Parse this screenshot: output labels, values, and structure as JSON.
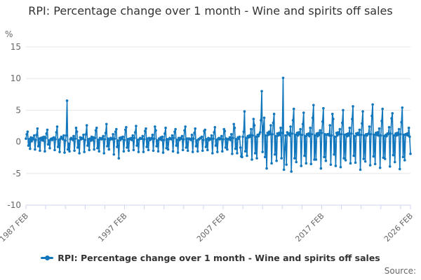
{
  "title": "RPI: Percentage change over 1 month - Wine and spirits off sales",
  "y_unit_label": "%",
  "legend": {
    "label": "RPI: Percentage change over 1 month - Wine and spirits off sales"
  },
  "source_label": "Source:",
  "colors": {
    "line": "#1277bc",
    "grid": "#e6e6e6",
    "axis": "#ccd6eb",
    "tick_label": "#666666",
    "title": "#333333"
  },
  "chart_data": {
    "type": "line",
    "title": "RPI: Percentage change over 1 month - Wine and spirits off sales",
    "xlabel": "",
    "ylabel": "%",
    "ylim": [
      -10,
      15
    ],
    "yticks": [
      15,
      10,
      5,
      0,
      -5,
      -10
    ],
    "grid": "horizontal",
    "legend_position": "bottom",
    "frequency": "monthly",
    "x_start": "1987 FEB",
    "x_end": "2026 FEB",
    "minor_tick_every_months": 24,
    "xtick_labels": [
      {
        "label": "1987 FEB",
        "month_index": 0
      },
      {
        "label": "1997 FEB",
        "month_index": 120
      },
      {
        "label": "2007 FEB",
        "month_index": 240
      },
      {
        "label": "2017 FEB",
        "month_index": 360
      },
      {
        "label": "2026 FEB",
        "month_index": 468
      }
    ],
    "series": [
      {
        "name": "RPI: Percentage change over 1 month - Wine and spirits off sales",
        "start": "1987 FEB",
        "values": [
          0.5,
          1.2,
          1.6,
          -0.6,
          0.4,
          -1.1,
          0.7,
          0.1,
          0.6,
          0.4,
          1.0,
          -1.2,
          0.3,
          1.1,
          2.1,
          -0.7,
          0.5,
          -1.4,
          0.6,
          0.3,
          0.7,
          0.2,
          0.8,
          -1.5,
          0.6,
          1.3,
          1.9,
          -0.4,
          0.2,
          -1.0,
          0.4,
          0.5,
          0.3,
          0.6,
          0.7,
          -1.3,
          0.4,
          1.5,
          2.4,
          -0.8,
          0.3,
          -1.6,
          0.5,
          0.8,
          0.6,
          0.4,
          1.0,
          -1.7,
          0.2,
          1.0,
          6.5,
          -1.2,
          -0.3,
          -1.5,
          0.4,
          0.6,
          0.5,
          0.3,
          0.9,
          -1.4,
          0.5,
          2.2,
          1.6,
          -0.9,
          0.2,
          -1.8,
          0.7,
          0.4,
          0.6,
          0.5,
          1.1,
          -1.6,
          0.3,
          1.2,
          2.6,
          -0.6,
          0.4,
          -1.3,
          0.5,
          0.2,
          0.8,
          0.3,
          0.7,
          -1.2,
          0.6,
          1.8,
          2.2,
          -1.0,
          0.3,
          -1.5,
          0.6,
          0.5,
          0.4,
          0.6,
          0.9,
          -1.8,
          0.4,
          1.4,
          2.8,
          -0.7,
          0.5,
          -1.2,
          0.3,
          0.6,
          0.5,
          0.4,
          1.2,
          -2.0,
          0.5,
          1.6,
          2.0,
          -0.8,
          0.2,
          -2.6,
          0.6,
          0.3,
          0.7,
          0.5,
          0.8,
          -1.5,
          0.3,
          1.9,
          2.3,
          -0.9,
          0.4,
          -1.4,
          0.5,
          0.4,
          0.6,
          0.3,
          1.0,
          -1.3,
          0.6,
          1.5,
          2.5,
          -0.6,
          0.3,
          -1.6,
          0.4,
          0.6,
          0.5,
          0.5,
          0.9,
          -1.6,
          0.4,
          1.7,
          2.1,
          -0.8,
          0.5,
          -1.3,
          0.6,
          0.3,
          0.4,
          0.6,
          1.1,
          -1.4,
          0.5,
          2.4,
          1.8,
          -0.7,
          0.2,
          -1.5,
          0.5,
          0.4,
          0.7,
          0.3,
          0.8,
          -1.7,
          0.3,
          1.3,
          2.2,
          -1.0,
          0.4,
          -1.2,
          0.4,
          0.6,
          0.5,
          0.4,
          1.0,
          -1.5,
          0.6,
          1.6,
          2.0,
          -0.6,
          0.3,
          -1.7,
          0.6,
          0.3,
          0.6,
          0.5,
          0.9,
          -1.3,
          0.4,
          1.8,
          2.4,
          -0.9,
          0.5,
          -1.4,
          0.5,
          0.5,
          0.4,
          0.3,
          1.1,
          -1.6,
          0.5,
          1.4,
          2.1,
          -0.7,
          0.2,
          -1.5,
          0.4,
          0.4,
          0.6,
          0.6,
          0.8,
          -1.4,
          0.3,
          1.7,
          1.9,
          -0.8,
          0.4,
          -1.3,
          0.6,
          0.3,
          0.5,
          0.4,
          1.0,
          -1.8,
          0.5,
          1.5,
          2.3,
          -0.6,
          0.3,
          -1.6,
          0.5,
          0.6,
          0.4,
          0.5,
          0.9,
          -1.5,
          0.4,
          2.0,
          1.7,
          -0.9,
          0.5,
          -1.2,
          0.4,
          0.4,
          0.7,
          0.3,
          1.2,
          -1.9,
          0.6,
          2.8,
          2.2,
          -1.1,
          0.4,
          -1.8,
          0.7,
          0.5,
          0.8,
          -0.9,
          -2.3,
          -2.4,
          0.8,
          1.6,
          4.8,
          -1.5,
          0.6,
          -2.2,
          0.9,
          0.7,
          1.0,
          0.8,
          2.0,
          -2.8,
          1.0,
          3.6,
          2.6,
          -1.8,
          0.8,
          -2.6,
          1.1,
          0.9,
          1.2,
          1.5,
          3.4,
          8.0,
          -1.6,
          2.4,
          3.8,
          -2.4,
          1.0,
          -4.2,
          1.4,
          1.1,
          1.6,
          1.2,
          2.6,
          -3.4,
          1.2,
          3.0,
          4.4,
          -2.0,
          0.9,
          -3.0,
          1.3,
          1.0,
          1.4,
          1.1,
          2.2,
          -2.6,
          1.4,
          10.1,
          -4.4,
          -1.2,
          1.0,
          -3.6,
          1.5,
          1.2,
          1.3,
          1.0,
          2.4,
          -4.7,
          1.3,
          3.4,
          5.2,
          -2.6,
          1.1,
          -3.2,
          1.4,
          1.0,
          1.5,
          1.2,
          2.0,
          -3.8,
          1.1,
          2.8,
          4.6,
          -2.2,
          0.9,
          -3.4,
          1.2,
          1.1,
          1.3,
          0.9,
          2.2,
          -3.5,
          1.2,
          3.8,
          5.8,
          -2.8,
          1.0,
          -2.8,
          1.3,
          0.9,
          1.4,
          1.1,
          1.8,
          -4.2,
          1.4,
          3.2,
          5.3,
          -2.4,
          1.2,
          -3.0,
          1.1,
          1.2,
          1.2,
          1.0,
          2.6,
          -3.6,
          1.0,
          4.4,
          3.6,
          -2.0,
          0.8,
          -3.8,
          1.4,
          1.0,
          1.5,
          1.2,
          2.0,
          -4.0,
          1.2,
          3.0,
          5.0,
          -2.6,
          1.1,
          -2.9,
          1.2,
          0.9,
          1.3,
          1.0,
          2.2,
          -3.4,
          1.3,
          3.6,
          5.6,
          -2.2,
          0.9,
          -3.3,
          1.3,
          1.1,
          1.4,
          1.1,
          1.9,
          -4.4,
          1.1,
          2.9,
          4.8,
          -2.7,
          1.0,
          -3.1,
          1.2,
          1.0,
          1.2,
          1.3,
          2.4,
          -3.7,
          1.2,
          4.1,
          5.9,
          -2.3,
          1.1,
          -3.5,
          1.4,
          1.1,
          1.5,
          1.0,
          2.1,
          -4.1,
          1.0,
          3.3,
          5.2,
          -2.5,
          0.9,
          -2.7,
          1.1,
          0.9,
          1.3,
          1.2,
          2.3,
          -3.9,
          1.3,
          3.7,
          4.5,
          -2.1,
          1.0,
          -3.2,
          1.3,
          1.0,
          1.4,
          1.1,
          2.0,
          -4.3,
          1.2,
          3.1,
          5.4,
          -2.4,
          1.1,
          -2.9,
          1.2,
          1.1,
          1.3,
          1.0,
          2.2,
          0.8,
          -1.9
        ]
      }
    ]
  }
}
